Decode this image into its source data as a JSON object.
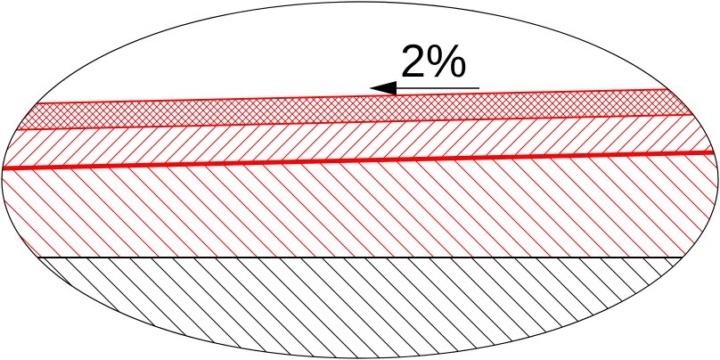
{
  "diagram": {
    "slope_label": "2%",
    "colors": {
      "layer_lines": "#ff0000",
      "existing_ground": "#000000",
      "outline": "#000000",
      "background": "#ffffff"
    },
    "layers": [
      {
        "name": "surface-course",
        "hatch": "crosshatch",
        "color": "#ff0000"
      },
      {
        "name": "base-course",
        "hatch": "diagonal-forward",
        "color": "#ff0000"
      },
      {
        "name": "sub-base",
        "hatch": "diagonal-backward",
        "color": "#ff0000"
      },
      {
        "name": "existing-ground",
        "hatch": "diagonal-backward",
        "color": "#000000"
      }
    ],
    "slope_direction": "left"
  }
}
